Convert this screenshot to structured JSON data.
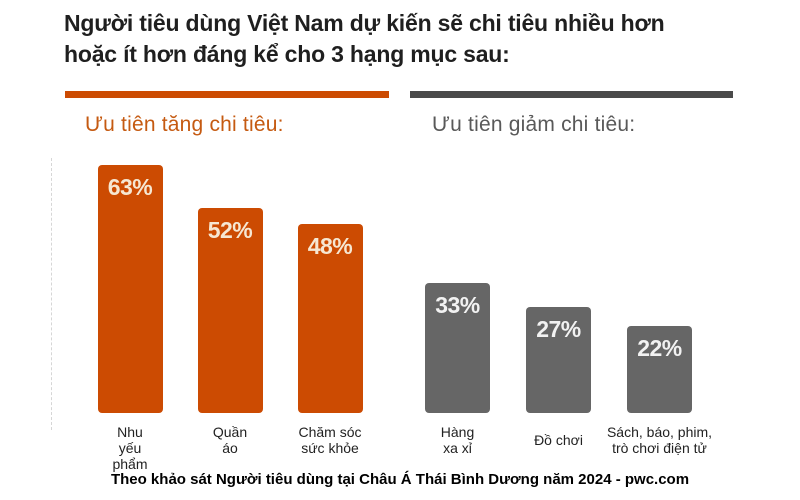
{
  "title": "Người tiêu dùng Việt Nam dự kiến sẽ chi tiêu nhiều hơn\nhoặc ít hơn đáng kể cho 3 hạng mục sau:",
  "caption": "Theo khảo sát Người tiêu dùng tại Châu Á Thái Bình Dương năm 2024 - pwc.com",
  "colors": {
    "accent_orange": "#cc4b02",
    "bar_gray": "#666666",
    "divider_gray": "#4a4a4a",
    "header_orange": "#c55a11",
    "header_gray": "#595959",
    "value_label_on_orange": "#f6e7d2",
    "value_label_on_gray": "#f2f2f2"
  },
  "chart_data": {
    "type": "bar",
    "title": "Người tiêu dùng Việt Nam dự kiến sẽ chi tiêu nhiều hơn hoặc ít hơn đáng kể cho 3 hạng mục sau:",
    "unit": "%",
    "ylim": [
      0,
      70
    ],
    "grid": false,
    "legend_position": "none",
    "source_note": "Theo khảo sát Người tiêu dùng tại Châu Á Thái Bình Dương năm 2024 - pwc.com",
    "groups": [
      {
        "name": "Ưu tiên tăng chi tiêu:",
        "color": "#cc4b02",
        "categories": [
          "Nhu\nyếu\nphẩm",
          "Quần\náo",
          "Chăm sóc\nsức khỏe"
        ],
        "values": [
          63,
          52,
          48
        ],
        "value_labels": [
          "63%",
          "52%",
          "48%"
        ]
      },
      {
        "name": "Ưu tiên giảm chi tiêu:",
        "color": "#666666",
        "categories": [
          "Hàng\nxa xỉ",
          "Đồ chơi",
          "Sách, báo, phim,\ntrò chơi điện tử"
        ],
        "values": [
          33,
          27,
          22
        ],
        "value_labels": [
          "33%",
          "27%",
          "22%"
        ]
      }
    ]
  }
}
